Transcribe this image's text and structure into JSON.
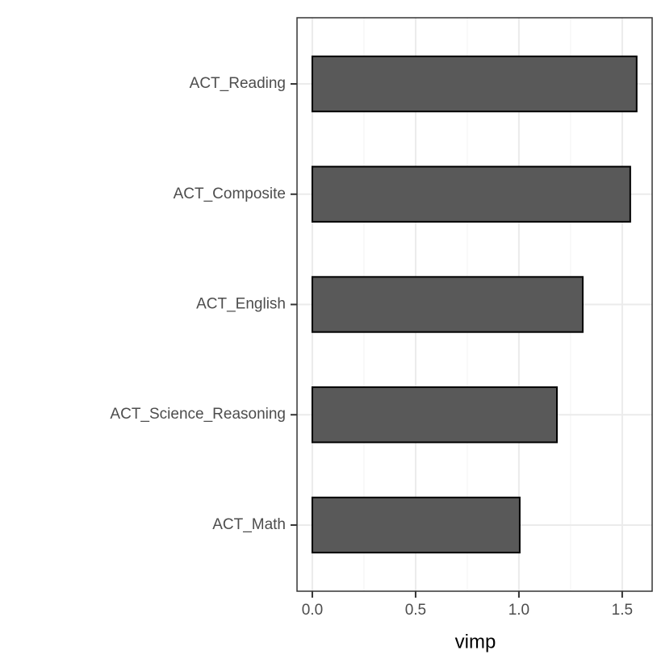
{
  "chart_data": {
    "type": "bar",
    "orientation": "horizontal",
    "x_label": "vimp",
    "categories": [
      "ACT_Reading",
      "ACT_Composite",
      "ACT_English",
      "ACT_Science_Reasoning",
      "ACT_Math"
    ],
    "values": [
      1.57,
      1.539,
      1.309,
      1.184,
      1.004
    ],
    "color": "#595959",
    "xlim": [
      -0.074,
      1.645
    ],
    "xticks": [
      {
        "value": 0,
        "label": "0.0"
      },
      {
        "value": 0.5,
        "label": "0.5"
      },
      {
        "value": 1,
        "label": "1.0"
      },
      {
        "value": 1.5,
        "label": "1.5"
      }
    ],
    "grid": true
  }
}
